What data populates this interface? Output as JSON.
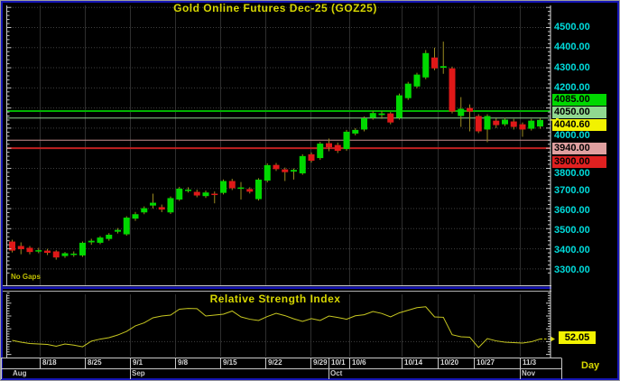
{
  "chart_data": {
    "type": "candlestick",
    "title": "Gold Online Futures Dec-25 (GOZ25)",
    "interval_label": "Day",
    "note": "No Gaps",
    "last_price": "4040.60",
    "price_axis": {
      "ylim": [
        3270,
        4610
      ],
      "gridline_prices": [
        4600,
        4500,
        4400,
        4300,
        4200,
        4100,
        4000,
        3900,
        3800,
        3700,
        3600,
        3500,
        3400,
        3300
      ],
      "tick_labels": [
        {
          "text": "4500.00",
          "style": "plain"
        },
        {
          "text": "4400.00",
          "style": "plain"
        },
        {
          "text": "4300.00",
          "style": "plain"
        },
        {
          "text": "4200.00",
          "style": "plain"
        },
        {
          "text": "4085.00",
          "style": "green"
        },
        {
          "text": "4050.00",
          "style": "pale-green"
        },
        {
          "text": "4040.60",
          "style": "yellow"
        },
        {
          "text": "4000.00",
          "style": "plain"
        },
        {
          "text": "3940.00",
          "style": "pink"
        },
        {
          "text": "3900.00",
          "style": "red"
        },
        {
          "text": "3800.00",
          "style": "plain"
        },
        {
          "text": "3700.00",
          "style": "plain"
        },
        {
          "text": "3600.00",
          "style": "plain"
        },
        {
          "text": "3500.00",
          "style": "plain"
        },
        {
          "text": "3400.00",
          "style": "plain"
        },
        {
          "text": "3300.00",
          "style": "plain"
        }
      ]
    },
    "time_axis": {
      "week_labels": [
        "8/18",
        "8/25",
        "9/1",
        "9/8",
        "9/15",
        "9/22",
        "9/29",
        "10/1",
        "10/6",
        "10/14",
        "10/20",
        "10/27",
        "11/3"
      ],
      "month_labels": [
        "Aug",
        "Sep",
        "Oct",
        "Nov"
      ]
    },
    "levels": [
      {
        "price": 4085.0,
        "color": "#00b400",
        "width": 2
      },
      {
        "price": 4050.0,
        "color": "#90d090",
        "width": 1
      },
      {
        "price": 3940.0,
        "color": "#c89090",
        "width": 1
      },
      {
        "price": 3900.0,
        "color": "#c02020",
        "width": 2
      }
    ],
    "candles": [
      [
        3436,
        3445,
        3382,
        3391
      ],
      [
        3414,
        3432,
        3373,
        3398
      ],
      [
        3405,
        3414,
        3373,
        3384
      ],
      [
        3387,
        3405,
        3378,
        3393
      ],
      [
        3391,
        3400,
        3369,
        3380
      ],
      [
        3387,
        3393,
        3346,
        3357
      ],
      [
        3364,
        3384,
        3355,
        3378
      ],
      [
        3371,
        3387,
        3360,
        3376
      ],
      [
        3367,
        3436,
        3360,
        3430
      ],
      [
        3432,
        3450,
        3420,
        3440
      ],
      [
        3430,
        3463,
        3423,
        3456
      ],
      [
        3449,
        3478,
        3440,
        3470
      ],
      [
        3485,
        3503,
        3476,
        3494
      ],
      [
        3472,
        3562,
        3465,
        3555
      ],
      [
        3550,
        3583,
        3539,
        3572
      ],
      [
        3581,
        3611,
        3572,
        3602
      ],
      [
        3615,
        3674,
        3600,
        3629
      ],
      [
        3607,
        3620,
        3582,
        3595
      ],
      [
        3581,
        3660,
        3573,
        3652
      ],
      [
        3645,
        3708,
        3638,
        3699
      ],
      [
        3688,
        3706,
        3680,
        3694
      ],
      [
        3683,
        3694,
        3656,
        3665
      ],
      [
        3662,
        3690,
        3653,
        3680
      ],
      [
        3674,
        3685,
        3626,
        3668
      ],
      [
        3678,
        3745,
        3670,
        3737
      ],
      [
        3737,
        3748,
        3692,
        3701
      ],
      [
        3699,
        3732,
        3645,
        3705
      ],
      [
        3697,
        3706,
        3675,
        3684
      ],
      [
        3647,
        3751,
        3640,
        3744
      ],
      [
        3739,
        3825,
        3730,
        3816
      ],
      [
        3817,
        3827,
        3787,
        3796
      ],
      [
        3795,
        3804,
        3737,
        3781
      ],
      [
        3784,
        3800,
        3744,
        3792
      ],
      [
        3775,
        3870,
        3768,
        3861
      ],
      [
        3870,
        3879,
        3829,
        3838
      ],
      [
        3851,
        3932,
        3842,
        3923
      ],
      [
        3925,
        3948,
        3885,
        3905
      ],
      [
        3916,
        3928,
        3876,
        3887
      ],
      [
        3896,
        3991,
        3887,
        3982
      ],
      [
        3973,
        4000,
        3964,
        3991
      ],
      [
        3993,
        4058,
        3984,
        4049
      ],
      [
        4051,
        4084,
        4042,
        4075
      ],
      [
        4065,
        4084,
        4046,
        4073
      ],
      [
        4073,
        4080,
        4019,
        4028
      ],
      [
        4051,
        4172,
        4042,
        4163
      ],
      [
        4149,
        4230,
        4140,
        4221
      ],
      [
        4207,
        4275,
        4198,
        4266
      ],
      [
        4252,
        4388,
        4243,
        4373
      ],
      [
        4351,
        4400,
        4288,
        4297
      ],
      [
        4300,
        4430,
        4270,
        4308
      ],
      [
        4297,
        4306,
        4073,
        4082
      ],
      [
        4060,
        4154,
        4006,
        4096
      ],
      [
        4100,
        4118,
        3984,
        4082
      ],
      [
        4060,
        4069,
        3975,
        3984
      ],
      [
        3993,
        4069,
        3930,
        4060
      ],
      [
        4037,
        4049,
        4000,
        4015
      ],
      [
        4019,
        4051,
        4010,
        4042
      ],
      [
        4033,
        4046,
        3993,
        4006
      ],
      [
        4019,
        4028,
        3957,
        3993
      ],
      [
        3997,
        4046,
        3988,
        4037
      ],
      [
        4008,
        4049,
        3997,
        4040.6
      ]
    ],
    "rsi": {
      "title": "Relative Strength Index",
      "last_value_label": "52.05",
      "level_lines": [
        50
      ],
      "values": [
        51.0,
        49.6,
        48.5,
        48.2,
        47.8,
        46.4,
        48.2,
        47.3,
        46.0,
        50.4,
        52.0,
        53.1,
        55.2,
        58.0,
        62.3,
        64.7,
        68.6,
        70.0,
        70.7,
        75.3,
        75.9,
        75.7,
        70.0,
        70.7,
        71.4,
        73.9,
        69.3,
        67.5,
        66.5,
        69.6,
        72.1,
        70.3,
        67.8,
        65.8,
        68.0,
        66.5,
        70.0,
        68.9,
        67.5,
        70.2,
        71.0,
        73.5,
        72.0,
        69.3,
        72.5,
        74.5,
        76.5,
        77.2,
        69.3,
        69.0,
        55.4,
        53.8,
        53.5,
        45.4,
        52.4,
        50.6,
        49.6,
        49.2,
        48.9,
        49.9,
        52.05
      ]
    },
    "colors": {
      "up": "#00d800",
      "down": "#e01818",
      "wick": "#9a8a20",
      "axis_text": "#00dcdc",
      "title": "#d8d800",
      "rsi_line": "#c8c820",
      "frame_blue": "#1616b6",
      "label_styles": {
        "green": "#00d800",
        "pale-green": "#90d890",
        "yellow": "#f2f200",
        "pink": "#e0a0a0",
        "red": "#e02020"
      }
    }
  }
}
